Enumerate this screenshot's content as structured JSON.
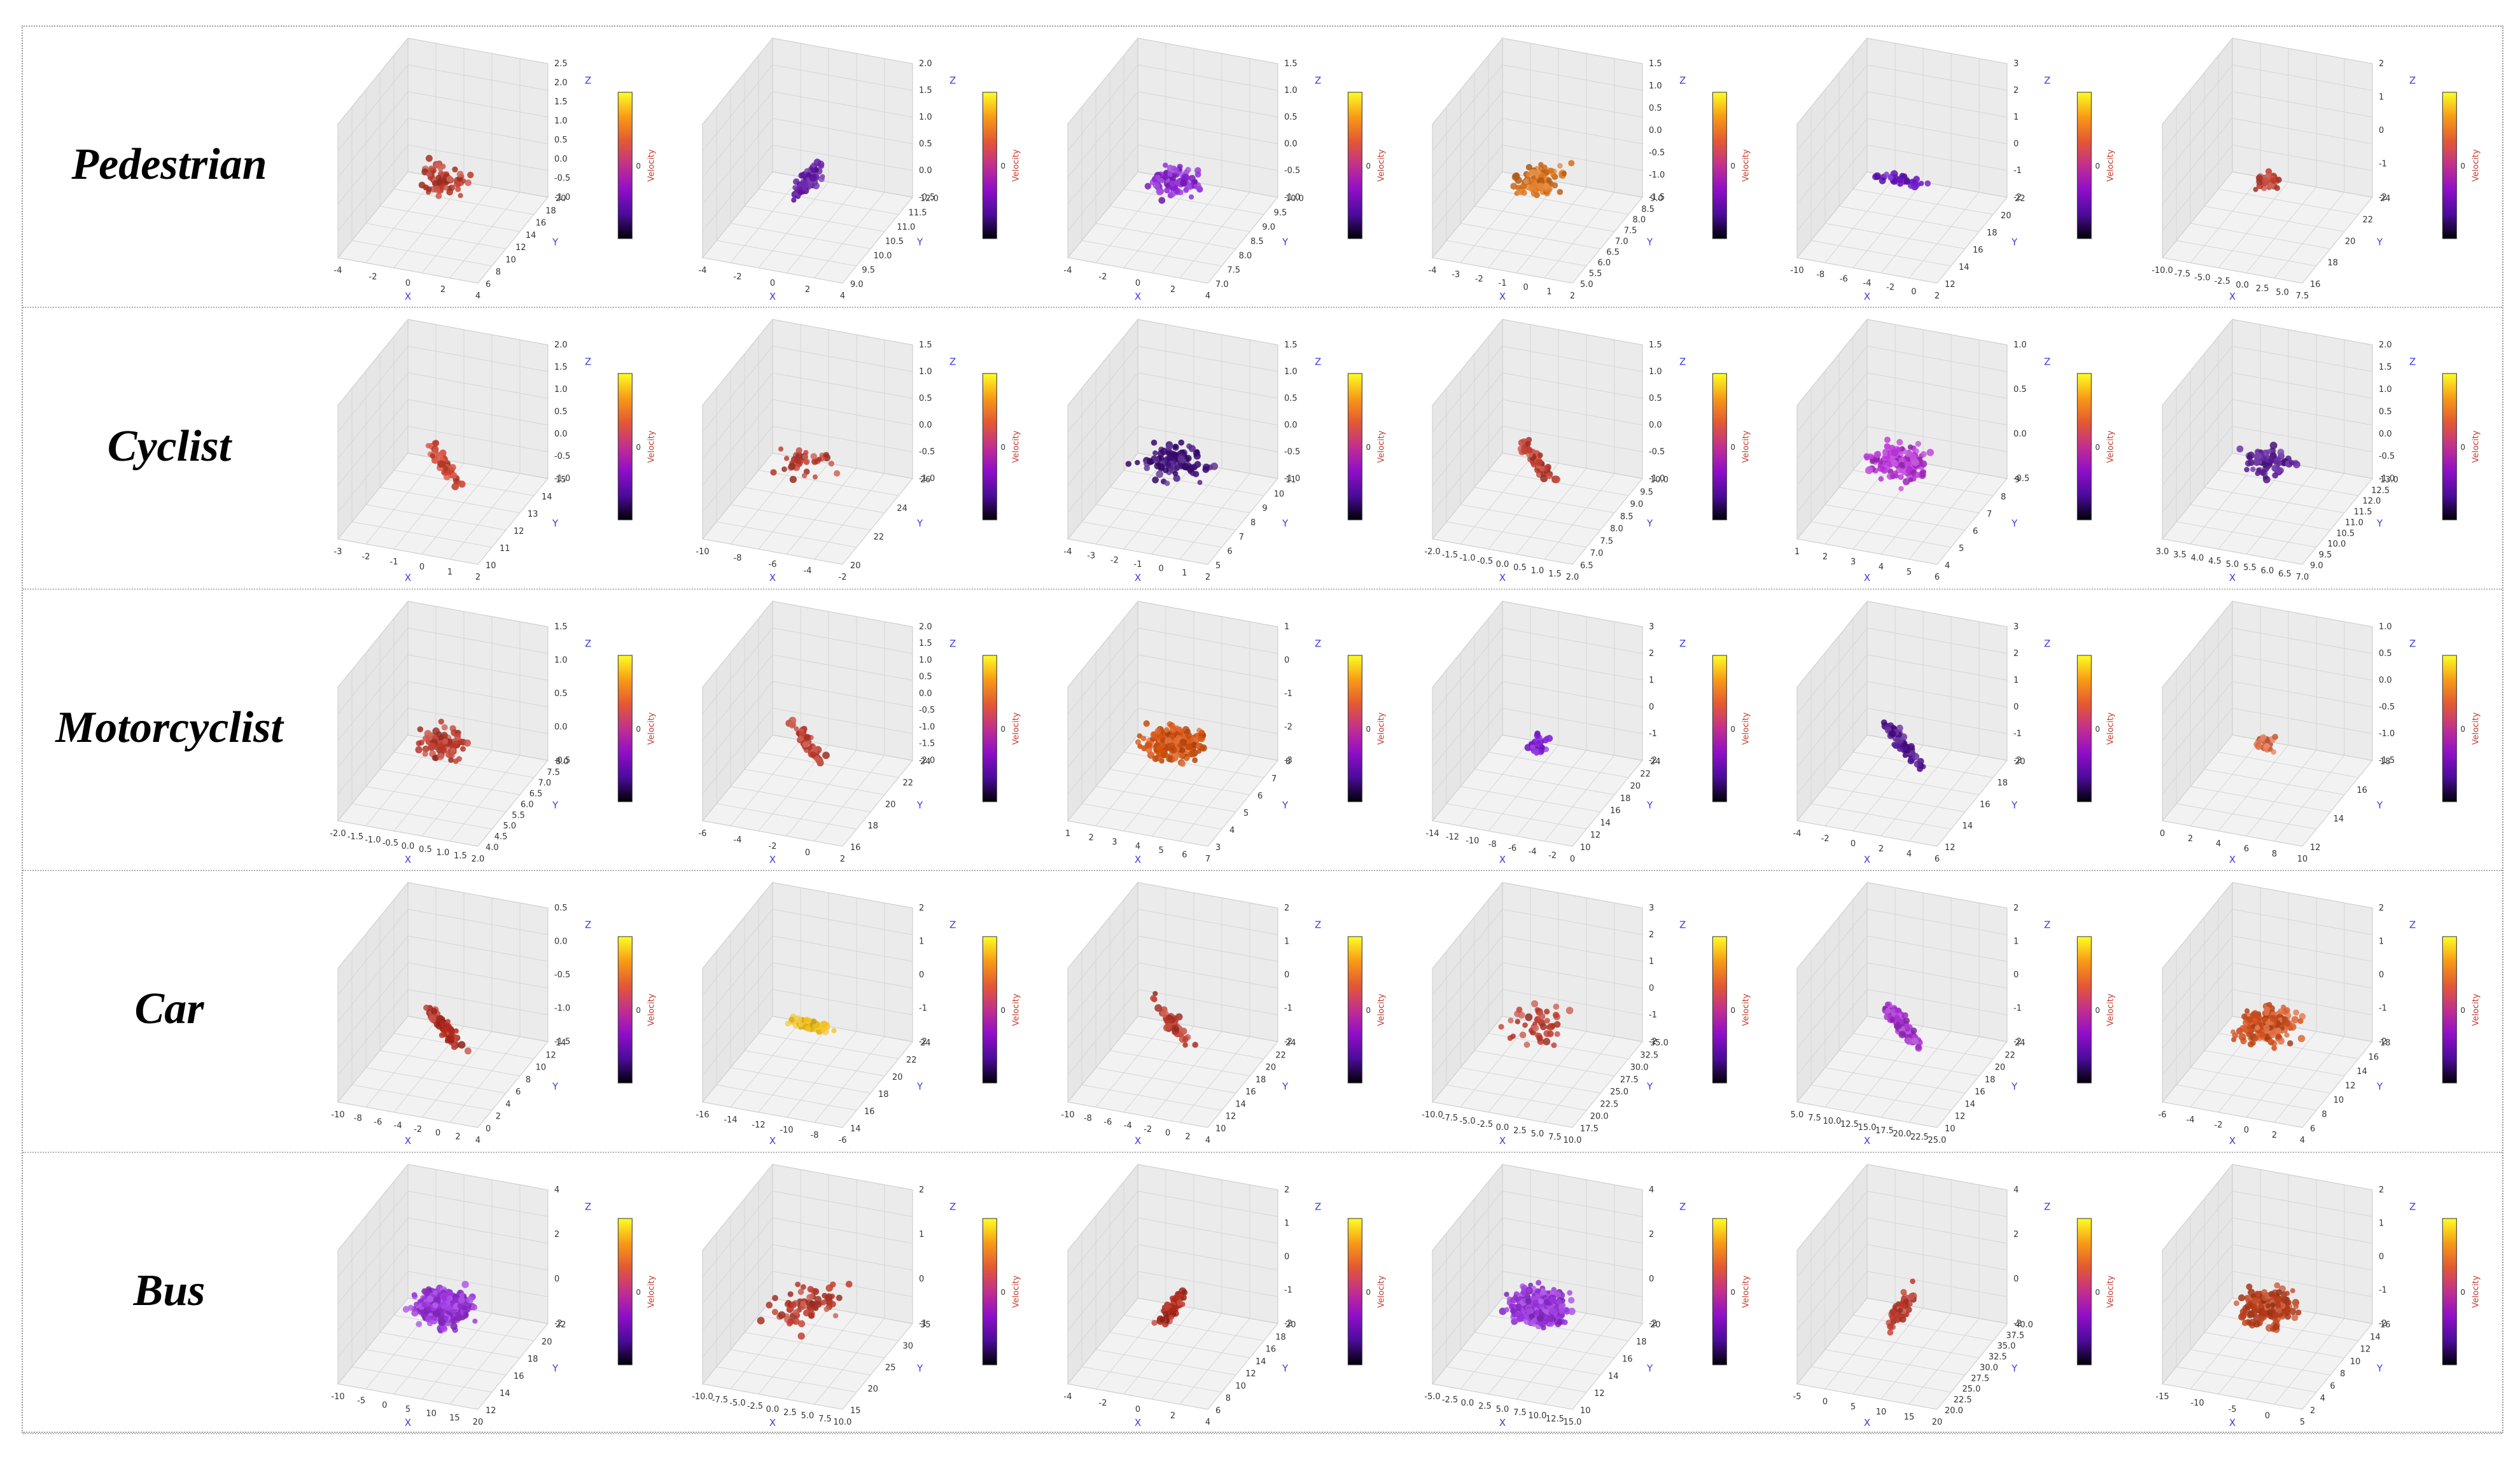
{
  "classes": [
    "Pedestrian",
    "Cyclist",
    "Motorcyclist",
    "Car",
    "Bus"
  ],
  "colorbar": {
    "label": "Velocity",
    "tick": "0",
    "label_color": "#c0392b"
  },
  "axis_labels": {
    "x": "X",
    "y": "Y",
    "z": "Z",
    "color": "#3a3ae0"
  },
  "colormap": [
    "#000004",
    "#4b0c9b",
    "#8f0ec9",
    "#c22f8f",
    "#e35933",
    "#f89b16",
    "#fcfe24"
  ],
  "chart_data": [
    {
      "type": "scatter",
      "row": "Pedestrian",
      "col": 1,
      "x_ticks": [
        "-4",
        "-2",
        "0",
        "2",
        "4"
      ],
      "y_ticks": [
        "6",
        "8",
        "10",
        "12",
        "14",
        "16",
        "18",
        "20"
      ],
      "z_ticks": [
        "-1.0",
        "-0.5",
        "0.0",
        "0.5",
        "1.0",
        "1.5",
        "2.0",
        "2.5"
      ],
      "dominant_color": "#c0392b",
      "cluster_shape": "blob",
      "points": 75
    },
    {
      "type": "scatter",
      "row": "Pedestrian",
      "col": 2,
      "x_ticks": [
        "-4",
        "-2",
        "0",
        "2",
        "4"
      ],
      "y_ticks": [
        "9.0",
        "9.5",
        "10.0",
        "10.5",
        "11.0",
        "11.5",
        "12.0"
      ],
      "z_ticks": [
        "-0.5",
        "0.0",
        "0.5",
        "1.0",
        "1.5",
        "2.0"
      ],
      "dominant_color": "#5b10a0",
      "cluster_shape": "vertical",
      "points": 70
    },
    {
      "type": "scatter",
      "row": "Pedestrian",
      "col": 3,
      "x_ticks": [
        "-4",
        "-2",
        "0",
        "2",
        "4"
      ],
      "y_ticks": [
        "7.0",
        "7.5",
        "8.0",
        "8.5",
        "9.0",
        "9.5",
        "10.0"
      ],
      "z_ticks": [
        "-1.0",
        "-0.5",
        "0.0",
        "0.5",
        "1.0",
        "1.5"
      ],
      "dominant_color": "#8b1fd6",
      "cluster_shape": "blob",
      "points": 90
    },
    {
      "type": "scatter",
      "row": "Pedestrian",
      "col": 4,
      "x_ticks": [
        "-4",
        "-3",
        "-2",
        "-1",
        "0",
        "1",
        "2"
      ],
      "y_ticks": [
        "5.0",
        "5.5",
        "6.0",
        "6.5",
        "7.0",
        "7.5",
        "8.0",
        "8.5",
        "9.0"
      ],
      "z_ticks": [
        "-1.5",
        "-1.0",
        "-0.5",
        "0.0",
        "0.5",
        "1.0",
        "1.5"
      ],
      "dominant_color": "#e0741a",
      "cluster_shape": "elongated",
      "points": 90
    },
    {
      "type": "scatter",
      "row": "Pedestrian",
      "col": 5,
      "x_ticks": [
        "-10",
        "-8",
        "-6",
        "-4",
        "-2",
        "0",
        "2"
      ],
      "y_ticks": [
        "12",
        "14",
        "16",
        "18",
        "20",
        "22"
      ],
      "z_ticks": [
        "-2",
        "-1",
        "0",
        "1",
        "2",
        "3"
      ],
      "dominant_color": "#6a12c8",
      "cluster_shape": "horizontal",
      "points": 35
    },
    {
      "type": "scatter",
      "row": "Pedestrian",
      "col": 6,
      "x_ticks": [
        "-10.0",
        "-7.5",
        "-5.0",
        "-2.5",
        "0.0",
        "2.5",
        "5.0",
        "7.5"
      ],
      "y_ticks": [
        "16",
        "18",
        "20",
        "22",
        "24"
      ],
      "z_ticks": [
        "-2",
        "-1",
        "0",
        "1",
        "2"
      ],
      "dominant_color": "#c0392b",
      "cluster_shape": "small",
      "points": 30
    },
    {
      "type": "scatter",
      "row": "Cyclist",
      "col": 1,
      "x_ticks": [
        "-3",
        "-2",
        "-1",
        "0",
        "1",
        "2"
      ],
      "y_ticks": [
        "10",
        "11",
        "12",
        "13",
        "14",
        "15"
      ],
      "z_ticks": [
        "-1.0",
        "-0.5",
        "0.0",
        "0.5",
        "1.0",
        "1.5",
        "2.0"
      ],
      "dominant_color": "#d2402c",
      "cluster_shape": "diagonal",
      "points": 40
    },
    {
      "type": "scatter",
      "row": "Cyclist",
      "col": 2,
      "x_ticks": [
        "-10",
        "-8",
        "-6",
        "-4",
        "-2"
      ],
      "y_ticks": [
        "20",
        "22",
        "24",
        "26"
      ],
      "z_ticks": [
        "-1.0",
        "-0.5",
        "0.0",
        "0.5",
        "1.0",
        "1.5"
      ],
      "dominant_color": "#c0392b",
      "cluster_shape": "scattered",
      "points": 35
    },
    {
      "type": "scatter",
      "row": "Cyclist",
      "col": 3,
      "x_ticks": [
        "-4",
        "-3",
        "-2",
        "-1",
        "0",
        "1",
        "2"
      ],
      "y_ticks": [
        "5",
        "6",
        "7",
        "8",
        "9",
        "10",
        "11"
      ],
      "z_ticks": [
        "-1.0",
        "-0.5",
        "0.0",
        "0.5",
        "1.0",
        "1.5"
      ],
      "dominant_color": "#3c0a78",
      "cluster_shape": "wide",
      "points": 110
    },
    {
      "type": "scatter",
      "row": "Cyclist",
      "col": 4,
      "x_ticks": [
        "-2.0",
        "-1.5",
        "-1.0",
        "-0.5",
        "0.0",
        "0.5",
        "1.0",
        "1.5",
        "2.0"
      ],
      "y_ticks": [
        "6.5",
        "7.0",
        "7.5",
        "8.0",
        "8.5",
        "9.0",
        "9.5",
        "10.0"
      ],
      "z_ticks": [
        "-1.0",
        "-0.5",
        "0.0",
        "0.5",
        "1.0",
        "1.5"
      ],
      "dominant_color": "#c0392b",
      "cluster_shape": "diagonal",
      "points": 60
    },
    {
      "type": "scatter",
      "row": "Cyclist",
      "col": 5,
      "x_ticks": [
        "1",
        "2",
        "3",
        "4",
        "5",
        "6"
      ],
      "y_ticks": [
        "4",
        "5",
        "6",
        "7",
        "8",
        "9"
      ],
      "z_ticks": [
        "-0.5",
        "0.0",
        "0.5",
        "1.0"
      ],
      "dominant_color": "#b82ed8",
      "cluster_shape": "wide",
      "points": 140
    },
    {
      "type": "scatter",
      "row": "Cyclist",
      "col": 6,
      "x_ticks": [
        "3.0",
        "3.5",
        "4.0",
        "4.5",
        "5.0",
        "5.5",
        "6.0",
        "6.5",
        "7.0"
      ],
      "y_ticks": [
        "9.0",
        "9.5",
        "10.0",
        "10.5",
        "11.0",
        "11.5",
        "12.0",
        "12.5",
        "13.0"
      ],
      "z_ticks": [
        "-1.0",
        "-0.5",
        "0.0",
        "0.5",
        "1.0",
        "1.5",
        "2.0"
      ],
      "dominant_color": "#5a1a9a",
      "cluster_shape": "blob",
      "points": 80
    },
    {
      "type": "scatter",
      "row": "Motorcyclist",
      "col": 1,
      "x_ticks": [
        "-2.0",
        "-1.5",
        "-1.0",
        "-0.5",
        "0.0",
        "0.5",
        "1.0",
        "1.5",
        "2.0"
      ],
      "y_ticks": [
        "4.0",
        "4.5",
        "5.0",
        "5.5",
        "6.0",
        "6.5",
        "7.0",
        "7.5",
        "8.0"
      ],
      "z_ticks": [
        "-0.5",
        "0.0",
        "0.5",
        "1.0",
        "1.5"
      ],
      "dominant_color": "#c0392b",
      "cluster_shape": "blob",
      "points": 85
    },
    {
      "type": "scatter",
      "row": "Motorcyclist",
      "col": 2,
      "x_ticks": [
        "-6",
        "-4",
        "-2",
        "0",
        "2"
      ],
      "y_ticks": [
        "16",
        "18",
        "20",
        "22",
        "24"
      ],
      "z_ticks": [
        "-2.0",
        "-1.5",
        "-1.0",
        "-0.5",
        "0.0",
        "0.5",
        "1.0",
        "1.5",
        "2.0"
      ],
      "dominant_color": "#c0392b",
      "cluster_shape": "diagonal",
      "points": 55
    },
    {
      "type": "scatter",
      "row": "Motorcyclist",
      "col": 3,
      "x_ticks": [
        "1",
        "2",
        "3",
        "4",
        "5",
        "6",
        "7"
      ],
      "y_ticks": [
        "3",
        "4",
        "5",
        "6",
        "7",
        "8"
      ],
      "z_ticks": [
        "-3",
        "-2",
        "-1",
        "0",
        "1"
      ],
      "dominant_color": "#d9530f",
      "cluster_shape": "dense",
      "points": 220
    },
    {
      "type": "scatter",
      "row": "Motorcyclist",
      "col": 4,
      "x_ticks": [
        "-14",
        "-12",
        "-10",
        "-8",
        "-6",
        "-4",
        "-2",
        "0"
      ],
      "y_ticks": [
        "10",
        "12",
        "14",
        "16",
        "18",
        "20",
        "22",
        "24"
      ],
      "z_ticks": [
        "-2",
        "-1",
        "0",
        "1",
        "2",
        "3"
      ],
      "dominant_color": "#7b14d6",
      "cluster_shape": "small",
      "points": 35
    },
    {
      "type": "scatter",
      "row": "Motorcyclist",
      "col": 5,
      "x_ticks": [
        "-4",
        "-2",
        "0",
        "2",
        "4",
        "6"
      ],
      "y_ticks": [
        "12",
        "14",
        "16",
        "18",
        "20"
      ],
      "z_ticks": [
        "-2",
        "-1",
        "0",
        "1",
        "2",
        "3"
      ],
      "dominant_color": "#4a0b8c",
      "cluster_shape": "diagonal",
      "points": 70
    },
    {
      "type": "scatter",
      "row": "Motorcyclist",
      "col": 6,
      "x_ticks": [
        "0",
        "2",
        "4",
        "6",
        "8",
        "10"
      ],
      "y_ticks": [
        "12",
        "14",
        "16",
        "18"
      ],
      "z_ticks": [
        "-1.5",
        "-1.0",
        "-0.5",
        "0.0",
        "0.5",
        "1.0"
      ],
      "dominant_color": "#e06840",
      "cluster_shape": "small",
      "points": 25
    },
    {
      "type": "scatter",
      "row": "Car",
      "col": 1,
      "x_ticks": [
        "-10",
        "-8",
        "-6",
        "-4",
        "-2",
        "0",
        "2",
        "4"
      ],
      "y_ticks": [
        "0",
        "2",
        "4",
        "6",
        "8",
        "10",
        "12",
        "14"
      ],
      "z_ticks": [
        "-1.5",
        "-1.0",
        "-0.5",
        "0.0",
        "0.5"
      ],
      "dominant_color": "#b8291c",
      "cluster_shape": "diagonal",
      "points": 80
    },
    {
      "type": "scatter",
      "row": "Car",
      "col": 2,
      "x_ticks": [
        "-16",
        "-14",
        "-12",
        "-10",
        "-8",
        "-6"
      ],
      "y_ticks": [
        "14",
        "16",
        "18",
        "20",
        "22",
        "24"
      ],
      "z_ticks": [
        "-2",
        "-1",
        "0",
        "1",
        "2"
      ],
      "dominant_color": "#f2c21a",
      "cluster_shape": "horizontal",
      "points": 60
    },
    {
      "type": "scatter",
      "row": "Car",
      "col": 3,
      "x_ticks": [
        "-10",
        "-8",
        "-6",
        "-4",
        "-2",
        "0",
        "2",
        "4"
      ],
      "y_ticks": [
        "10",
        "12",
        "14",
        "16",
        "18",
        "20",
        "22",
        "24"
      ],
      "z_ticks": [
        "-2",
        "-1",
        "0",
        "1",
        "2"
      ],
      "dominant_color": "#c0392b",
      "cluster_shape": "diagonal",
      "points": 55
    },
    {
      "type": "scatter",
      "row": "Car",
      "col": 4,
      "x_ticks": [
        "-10.0",
        "-7.5",
        "-5.0",
        "-2.5",
        "0.0",
        "2.5",
        "5.0",
        "7.5",
        "10.0"
      ],
      "y_ticks": [
        "17.5",
        "20.0",
        "22.5",
        "25.0",
        "27.5",
        "30.0",
        "32.5",
        "35.0"
      ],
      "z_ticks": [
        "-2",
        "-1",
        "0",
        "1",
        "2",
        "3"
      ],
      "dominant_color": "#c0392b",
      "cluster_shape": "scattered",
      "points": 45
    },
    {
      "type": "scatter",
      "row": "Car",
      "col": 5,
      "x_ticks": [
        "5.0",
        "7.5",
        "10.0",
        "12.5",
        "15.0",
        "17.5",
        "20.0",
        "22.5",
        "25.0"
      ],
      "y_ticks": [
        "10",
        "12",
        "14",
        "16",
        "18",
        "20",
        "22",
        "24"
      ],
      "z_ticks": [
        "-2",
        "-1",
        "0",
        "1",
        "2"
      ],
      "dominant_color": "#a92fd4",
      "cluster_shape": "diagonal",
      "points": 120
    },
    {
      "type": "scatter",
      "row": "Car",
      "col": 6,
      "x_ticks": [
        "-6",
        "-4",
        "-2",
        "0",
        "2",
        "4"
      ],
      "y_ticks": [
        "6",
        "8",
        "10",
        "12",
        "14",
        "16",
        "18"
      ],
      "z_ticks": [
        "-2",
        "-1",
        "0",
        "1",
        "2"
      ],
      "dominant_color": "#d9531f",
      "cluster_shape": "dense",
      "points": 200
    },
    {
      "type": "scatter",
      "row": "Bus",
      "col": 1,
      "x_ticks": [
        "-10",
        "-5",
        "0",
        "5",
        "10",
        "15",
        "20"
      ],
      "y_ticks": [
        "12",
        "14",
        "16",
        "18",
        "20",
        "22"
      ],
      "z_ticks": [
        "-2",
        "0",
        "2",
        "4"
      ],
      "dominant_color": "#9b30e0",
      "cluster_shape": "dense",
      "points": 320
    },
    {
      "type": "scatter",
      "row": "Bus",
      "col": 2,
      "x_ticks": [
        "-10.0",
        "-7.5",
        "-5.0",
        "-2.5",
        "0.0",
        "2.5",
        "5.0",
        "7.5",
        "10.0"
      ],
      "y_ticks": [
        "15",
        "20",
        "25",
        "30",
        "35"
      ],
      "z_ticks": [
        "-1",
        "0",
        "1",
        "2"
      ],
      "dominant_color": "#c0392b",
      "cluster_shape": "scattered",
      "points": 75
    },
    {
      "type": "scatter",
      "row": "Bus",
      "col": 3,
      "x_ticks": [
        "-4",
        "-2",
        "0",
        "2",
        "4"
      ],
      "y_ticks": [
        "6",
        "8",
        "10",
        "12",
        "14",
        "16",
        "18",
        "20"
      ],
      "z_ticks": [
        "-2",
        "-1",
        "0",
        "1",
        "2"
      ],
      "dominant_color": "#b8291c",
      "cluster_shape": "vertical",
      "points": 45
    },
    {
      "type": "scatter",
      "row": "Bus",
      "col": 4,
      "x_ticks": [
        "-5.0",
        "-2.5",
        "0.0",
        "2.5",
        "5.0",
        "7.5",
        "10.0",
        "12.5",
        "15.0"
      ],
      "y_ticks": [
        "10",
        "12",
        "14",
        "16",
        "18",
        "20"
      ],
      "z_ticks": [
        "-2",
        "0",
        "2",
        "4"
      ],
      "dominant_color": "#9a30e0",
      "cluster_shape": "dense",
      "points": 360
    },
    {
      "type": "scatter",
      "row": "Bus",
      "col": 5,
      "x_ticks": [
        "-5",
        "0",
        "5",
        "10",
        "15",
        "20"
      ],
      "y_ticks": [
        "20.0",
        "22.5",
        "25.0",
        "27.5",
        "30.0",
        "32.5",
        "35.0",
        "37.5",
        "40.0"
      ],
      "z_ticks": [
        "-2",
        "0",
        "2",
        "4"
      ],
      "dominant_color": "#c0392b",
      "cluster_shape": "vertical",
      "points": 55
    },
    {
      "type": "scatter",
      "row": "Bus",
      "col": 6,
      "x_ticks": [
        "-15",
        "-10",
        "-5",
        "0",
        "5"
      ],
      "y_ticks": [
        "2",
        "4",
        "6",
        "8",
        "10",
        "12",
        "14",
        "16"
      ],
      "z_ticks": [
        "-2",
        "-1",
        "0",
        "1",
        "2"
      ],
      "dominant_color": "#c0401c",
      "cluster_shape": "dense",
      "points": 220
    }
  ]
}
